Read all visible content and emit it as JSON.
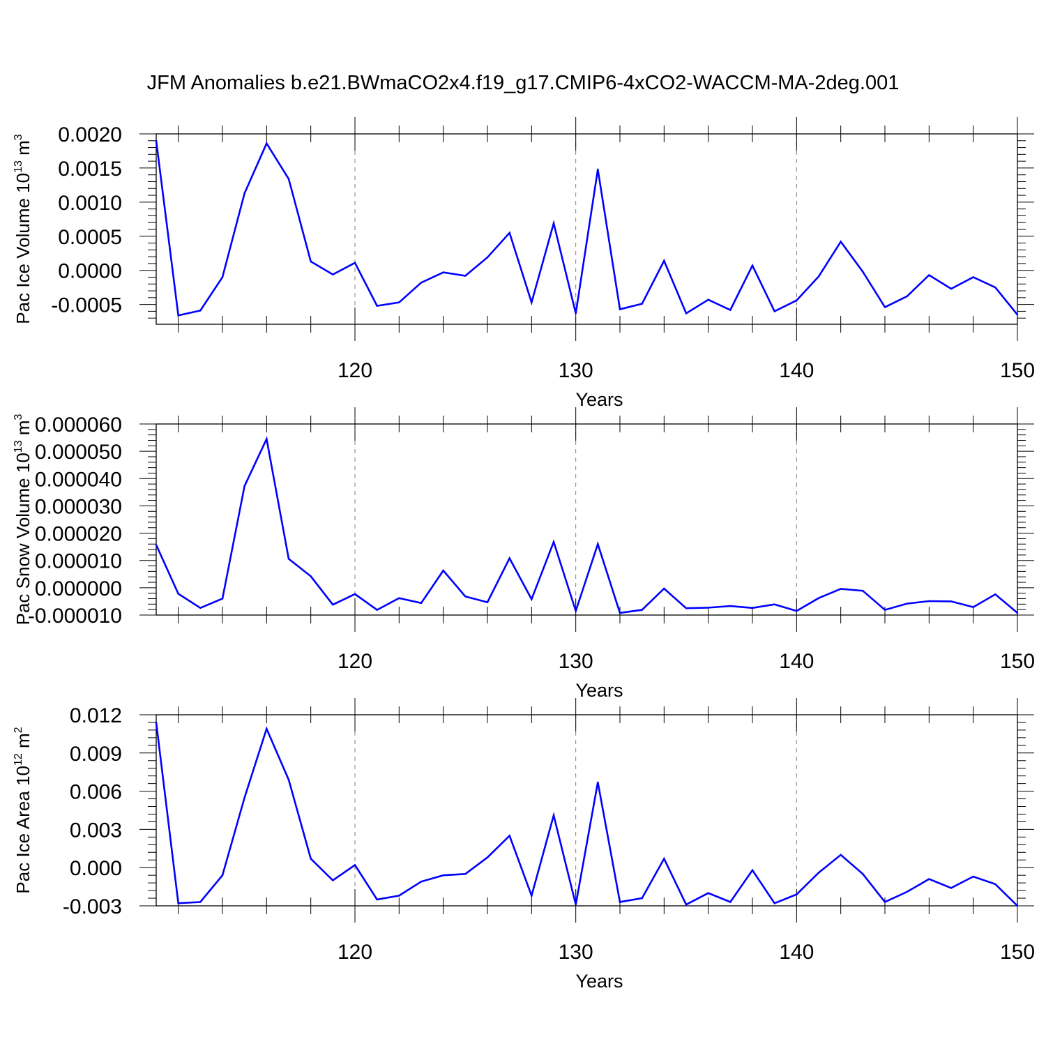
{
  "figure": {
    "title": "JFM Anomalies b.e21.BWmaCO2x4.f19_g17.CMIP6-4xCO2-WACCM-MA-2deg.001"
  },
  "style": {
    "line_color": "#0000ff",
    "axis_color": "#000000",
    "grid_color": "#7f7f7f"
  },
  "chart_data": [
    {
      "type": "line",
      "title": "",
      "xlabel": "Years",
      "ylabel_main": "Pac Ice Volume 10",
      "ylabel_exp": "13",
      "ylabel_unit": " m",
      "ylabel_unit_exp": "3",
      "xlim": [
        111,
        150
      ],
      "ylim": [
        -0.00079,
        0.002
      ],
      "x_ticks": [
        120,
        130,
        140,
        150
      ],
      "x_tick_labels": [
        "120",
        "130",
        "140",
        "150"
      ],
      "y_ticks": [
        0.002,
        0.0015,
        0.001,
        0.0005,
        0.0,
        -0.0005
      ],
      "y_tick_labels": [
        "0.0020",
        "0.0015",
        "0.0010",
        "0.0005",
        "0.0000",
        "-0.0005"
      ],
      "grid": "vertical dashed at major x ticks",
      "series": [
        {
          "x": [
            111,
            112,
            113,
            114,
            115,
            116,
            117,
            118,
            119,
            120,
            121,
            122,
            123,
            124,
            125,
            126,
            127,
            128,
            129,
            130,
            131,
            132,
            133,
            134,
            135,
            136,
            137,
            138,
            139,
            140,
            141,
            142,
            143,
            144,
            145,
            146,
            147,
            148,
            149,
            150
          ],
          "values": [
            0.0019,
            -0.00066,
            -0.00059,
            -0.0001,
            0.00113,
            0.00186,
            0.00134,
            0.00013,
            -6e-05,
            0.00011,
            -0.00052,
            -0.00047,
            -0.00018,
            -3e-05,
            -8e-05,
            0.00019,
            0.00055,
            -0.00047,
            0.00069,
            -0.00063,
            0.00148,
            -0.00057,
            -0.00049,
            0.00014,
            -0.00063,
            -0.00043,
            -0.00058,
            7e-05,
            -0.0006,
            -0.00044,
            -9e-05,
            0.00042,
            -2e-05,
            -0.00054,
            -0.00038,
            -7e-05,
            -0.00027,
            -0.0001,
            -0.00025,
            -0.00065
          ]
        }
      ]
    },
    {
      "type": "line",
      "title": "",
      "xlabel": "Years",
      "ylabel_main": "Pac Snow Volume 10",
      "ylabel_exp": "13",
      "ylabel_unit": " m",
      "ylabel_unit_exp": "3",
      "xlim": [
        111,
        150
      ],
      "ylim": [
        -1e-05,
        6e-05
      ],
      "x_ticks": [
        120,
        130,
        140,
        150
      ],
      "x_tick_labels": [
        "120",
        "130",
        "140",
        "150"
      ],
      "y_ticks": [
        6e-05,
        5e-05,
        4e-05,
        3e-05,
        2e-05,
        1e-05,
        0.0,
        -1e-05
      ],
      "y_tick_labels": [
        "0.000060",
        "0.000050",
        "0.000040",
        "0.000030",
        "0.000020",
        "0.000010",
        "0.000000",
        "-0.000010"
      ],
      "grid": "vertical dashed at major x ticks",
      "series": [
        {
          "x": [
            111,
            112,
            113,
            114,
            115,
            116,
            117,
            118,
            119,
            120,
            121,
            122,
            123,
            124,
            125,
            126,
            127,
            128,
            129,
            130,
            131,
            132,
            133,
            134,
            135,
            136,
            137,
            138,
            139,
            140,
            141,
            142,
            143,
            144,
            145,
            146,
            147,
            148,
            149,
            150
          ],
          "values": [
            1.57e-05,
            -2.2e-06,
            -7.4e-06,
            -4e-06,
            3.73e-05,
            5.45e-05,
            1.06e-05,
            4.2e-06,
            -6.2e-06,
            -2.3e-06,
            -8.1e-06,
            -3.8e-06,
            -5.6e-06,
            6.3e-06,
            -3.2e-06,
            -5.3e-06,
            1.08e-05,
            -4.2e-06,
            1.68e-05,
            -8.5e-06,
            1.6e-05,
            -9.2e-06,
            -8.1e-06,
            -3e-07,
            -7.5e-06,
            -7.3e-06,
            -6.7e-06,
            -7.4e-06,
            -6.1e-06,
            -8.5e-06,
            -3.8e-06,
            -4e-07,
            -1.1e-06,
            -8.1e-06,
            -5.8e-06,
            -4.9e-06,
            -5e-06,
            -7.1e-06,
            -2.4e-06,
            -9.2e-06
          ]
        }
      ]
    },
    {
      "type": "line",
      "title": "",
      "xlabel": "Years",
      "ylabel_main": "Pac Ice Area 10",
      "ylabel_exp": "12",
      "ylabel_unit": " m",
      "ylabel_unit_exp": "2",
      "xlim": [
        111,
        150
      ],
      "ylim": [
        -0.003,
        0.012
      ],
      "x_ticks": [
        120,
        130,
        140,
        150
      ],
      "x_tick_labels": [
        "120",
        "130",
        "140",
        "150"
      ],
      "y_ticks": [
        0.012,
        0.009,
        0.006,
        0.003,
        0.0,
        -0.003
      ],
      "y_tick_labels": [
        "0.012",
        "0.009",
        "0.006",
        "0.003",
        "0.000",
        "-0.003"
      ],
      "grid": "vertical dashed at major x ticks",
      "series": [
        {
          "x": [
            111,
            112,
            113,
            114,
            115,
            116,
            117,
            118,
            119,
            120,
            121,
            122,
            123,
            124,
            125,
            126,
            127,
            128,
            129,
            130,
            131,
            132,
            133,
            134,
            135,
            136,
            137,
            138,
            139,
            140,
            141,
            142,
            143,
            144,
            145,
            146,
            147,
            148,
            149,
            150
          ],
          "values": [
            0.0114,
            -0.0028,
            -0.0027,
            -0.0006,
            0.0055,
            0.0109,
            0.0069,
            0.0007,
            -0.001,
            0.0002,
            -0.0025,
            -0.0022,
            -0.0011,
            -0.0006,
            -0.0005,
            0.0008,
            0.0025,
            -0.0022,
            0.0041,
            -0.0029,
            0.0067,
            -0.0027,
            -0.0024,
            0.0007,
            -0.0029,
            -0.002,
            -0.0027,
            -0.0002,
            -0.0028,
            -0.0021,
            -0.0004,
            0.001,
            -0.0005,
            -0.0027,
            -0.0019,
            -0.0009,
            -0.0016,
            -0.0007,
            -0.0013,
            -0.003
          ]
        }
      ]
    }
  ]
}
